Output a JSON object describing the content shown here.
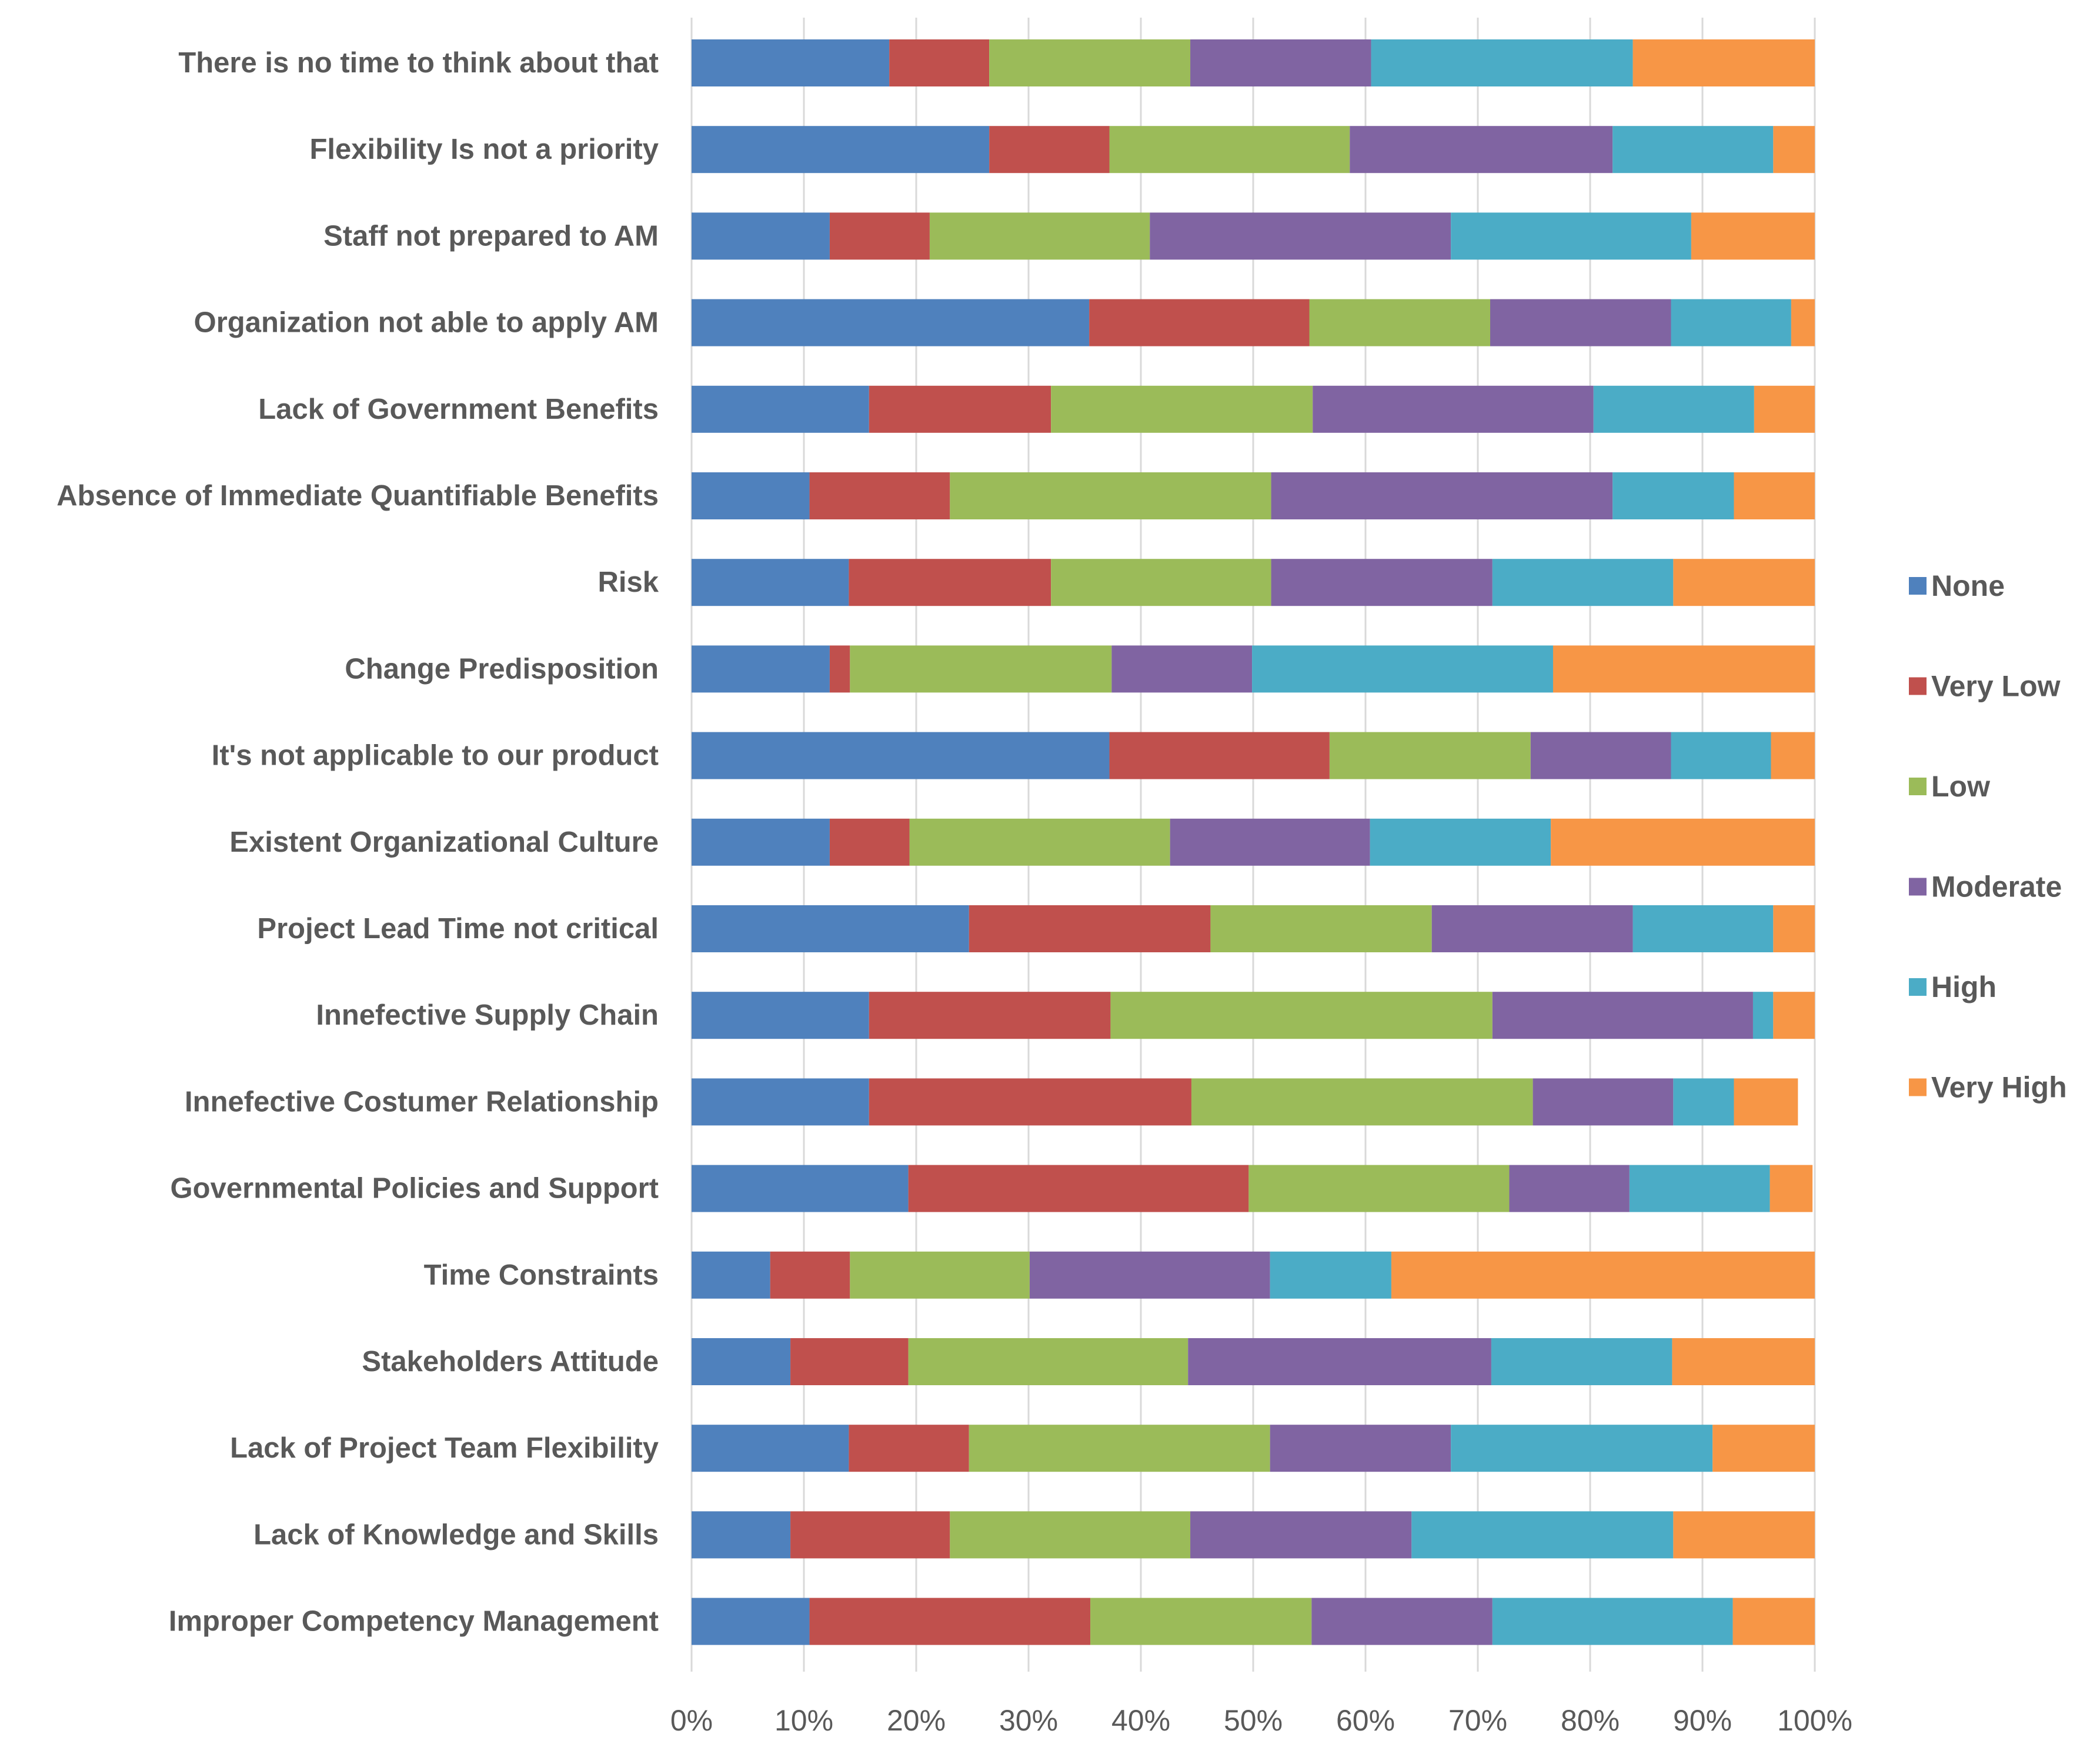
{
  "chart_data": {
    "type": "bar",
    "orientation": "horizontal",
    "stacked": "percent",
    "title": "",
    "xlabel": "",
    "ylabel": "",
    "xlim": [
      0,
      100
    ],
    "x_ticks": [
      "0%",
      "10%",
      "20%",
      "30%",
      "40%",
      "50%",
      "60%",
      "70%",
      "80%",
      "90%",
      "100%"
    ],
    "grid": "vertical",
    "legend_position": "right",
    "categories": [
      "There is no time to think about that",
      "Flexibility Is not a priority",
      "Staff not prepared to AM",
      "Organization not able to apply AM",
      "Lack of Government Benefits",
      "Absence of Immediate Quantifiable Benefits",
      "Risk",
      "Change Predisposition",
      "It's not applicable to our product",
      "Existent Organizational Culture",
      "Project Lead Time not critical",
      "Innefective Supply Chain",
      "Innefective Costumer Relationship",
      "Governmental Policies and Support",
      "Time Constraints",
      "Stakeholders Attitude",
      "Lack of Project Team Flexibility",
      "Lack of Knowledge and Skills",
      "Improper Competency Management"
    ],
    "series": [
      {
        "name": "None",
        "color": "#4f81bd",
        "values": [
          17.6,
          26.5,
          12.3,
          35.4,
          15.8,
          10.5,
          14.0,
          12.3,
          37.2,
          12.3,
          24.7,
          15.8,
          15.8,
          19.3,
          7.0,
          8.8,
          14.0,
          8.8,
          10.5
        ]
      },
      {
        "name": "Very Low",
        "color": "#c0504d",
        "values": [
          8.9,
          10.7,
          8.9,
          19.6,
          16.2,
          12.5,
          18.0,
          1.8,
          19.6,
          7.1,
          21.5,
          21.5,
          28.7,
          30.3,
          7.1,
          10.5,
          10.7,
          14.2,
          25.0
        ]
      },
      {
        "name": "Low",
        "color": "#9bbb59",
        "values": [
          17.9,
          21.4,
          19.6,
          16.1,
          23.3,
          28.6,
          19.6,
          23.3,
          17.9,
          23.2,
          19.7,
          34.0,
          30.4,
          23.2,
          16.0,
          24.9,
          26.8,
          21.4,
          19.7
        ]
      },
      {
        "name": "Moderate",
        "color": "#8064a2",
        "values": [
          16.1,
          23.4,
          26.8,
          16.1,
          25.0,
          30.4,
          19.7,
          12.5,
          12.5,
          17.8,
          17.9,
          23.2,
          12.5,
          10.7,
          21.4,
          27.0,
          16.1,
          19.7,
          16.1
        ]
      },
      {
        "name": "High",
        "color": "#4bacc6",
        "values": [
          23.3,
          14.3,
          21.4,
          10.7,
          14.3,
          10.8,
          16.1,
          26.8,
          8.9,
          16.1,
          12.5,
          1.8,
          5.4,
          12.5,
          10.8,
          16.1,
          23.3,
          23.3,
          21.4
        ]
      },
      {
        "name": "Very High",
        "color": "#f79646",
        "values": [
          16.2,
          3.7,
          11.0,
          2.1,
          5.4,
          7.2,
          12.6,
          23.3,
          3.9,
          23.5,
          3.7,
          3.7,
          5.7,
          3.8,
          37.7,
          12.7,
          9.1,
          12.6,
          7.3
        ]
      }
    ]
  }
}
